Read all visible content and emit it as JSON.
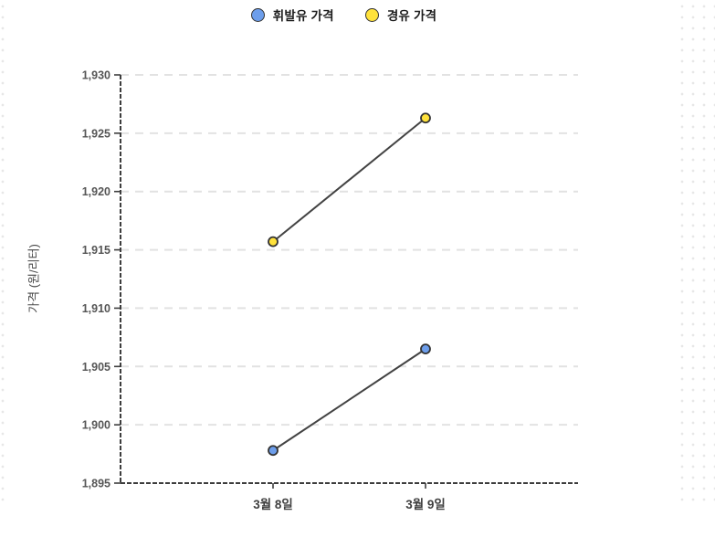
{
  "chart_data": {
    "type": "line",
    "categories": [
      "3월 8일",
      "3월 9일"
    ],
    "series": [
      {
        "name": "휘발유 가격",
        "marker_color": "#6d9eeb",
        "values": [
          1897.8,
          1906.5
        ]
      },
      {
        "name": "경유 가격",
        "marker_color": "#ffe23b",
        "values": [
          1915.7,
          1926.3
        ]
      }
    ],
    "title": "",
    "xlabel": "",
    "ylabel": "가격 (원/리터)",
    "ylim": [
      1895,
      1930
    ],
    "ytick_step": 5,
    "ytick_labels": [
      "1,895",
      "1,900",
      "1,905",
      "1,910",
      "1,915",
      "1,920",
      "1,925",
      "1,930"
    ],
    "legend_position": "top-center",
    "grid": "horizontal-dashed",
    "line_color": "#434343",
    "grid_color": "#e2e2e2",
    "axis_color": "#3d3d3d",
    "marker_border_color": "#333333"
  }
}
